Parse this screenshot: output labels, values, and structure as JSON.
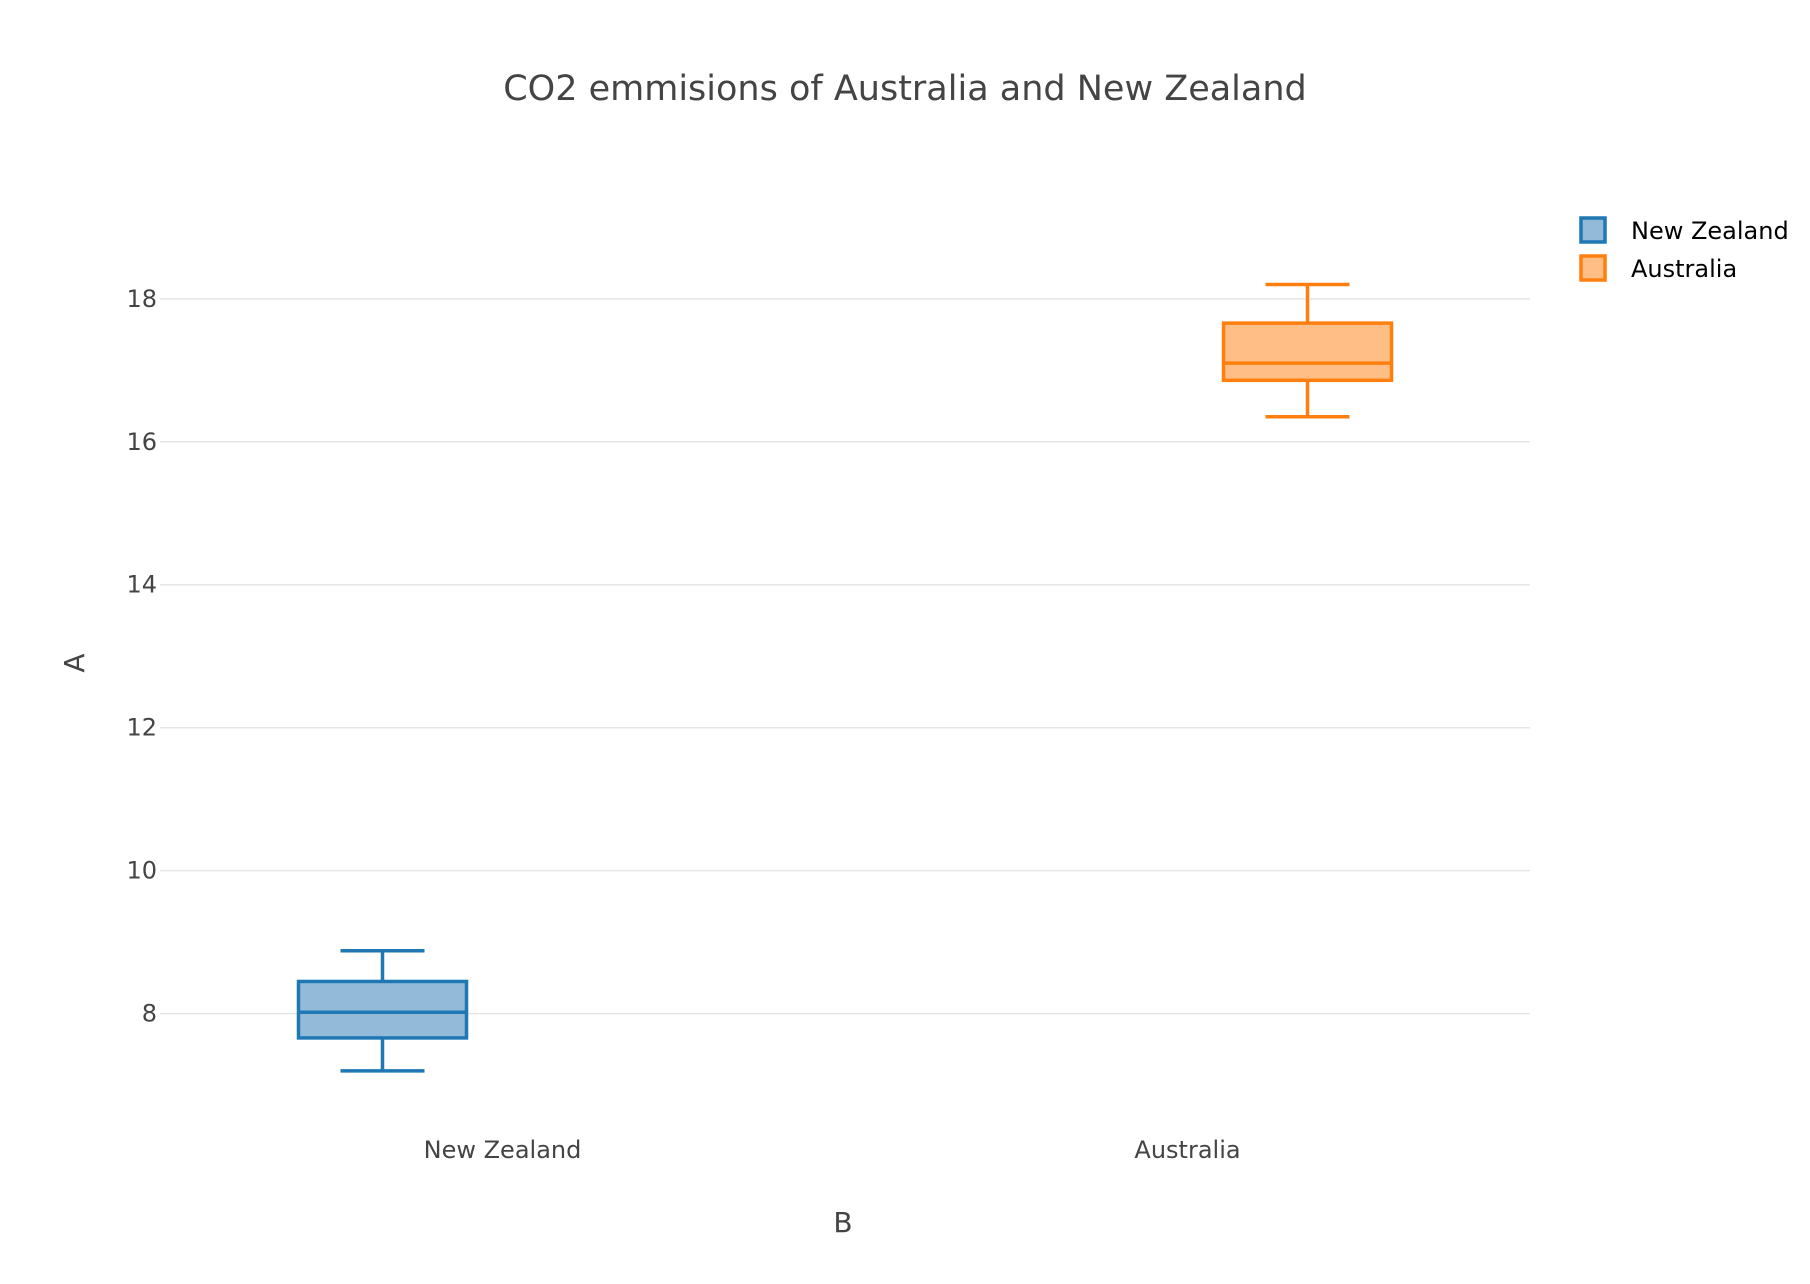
{
  "chart_data": {
    "type": "box",
    "title": "CO2 emmisions of Australia and New Zealand",
    "xlabel": "B",
    "ylabel": "A",
    "ylim": [
      6.4,
      19.9
    ],
    "yticks": [
      8,
      10,
      12,
      14,
      16,
      18
    ],
    "grid": true,
    "legend_position": "top-right",
    "categories": [
      "New Zealand",
      "Australia"
    ],
    "series": [
      {
        "name": "New Zealand",
        "category": "New Zealand",
        "color": "#1f77b4",
        "fill": "#94bad9",
        "min": 7.2,
        "q1": 7.66,
        "median": 8.02,
        "q3": 8.45,
        "max": 8.88
      },
      {
        "name": "Australia",
        "category": "Australia",
        "color": "#ff7f0e",
        "fill": "#ffbe86",
        "min": 16.35,
        "q1": 16.86,
        "median": 17.1,
        "q3": 17.66,
        "max": 18.2
      }
    ]
  }
}
